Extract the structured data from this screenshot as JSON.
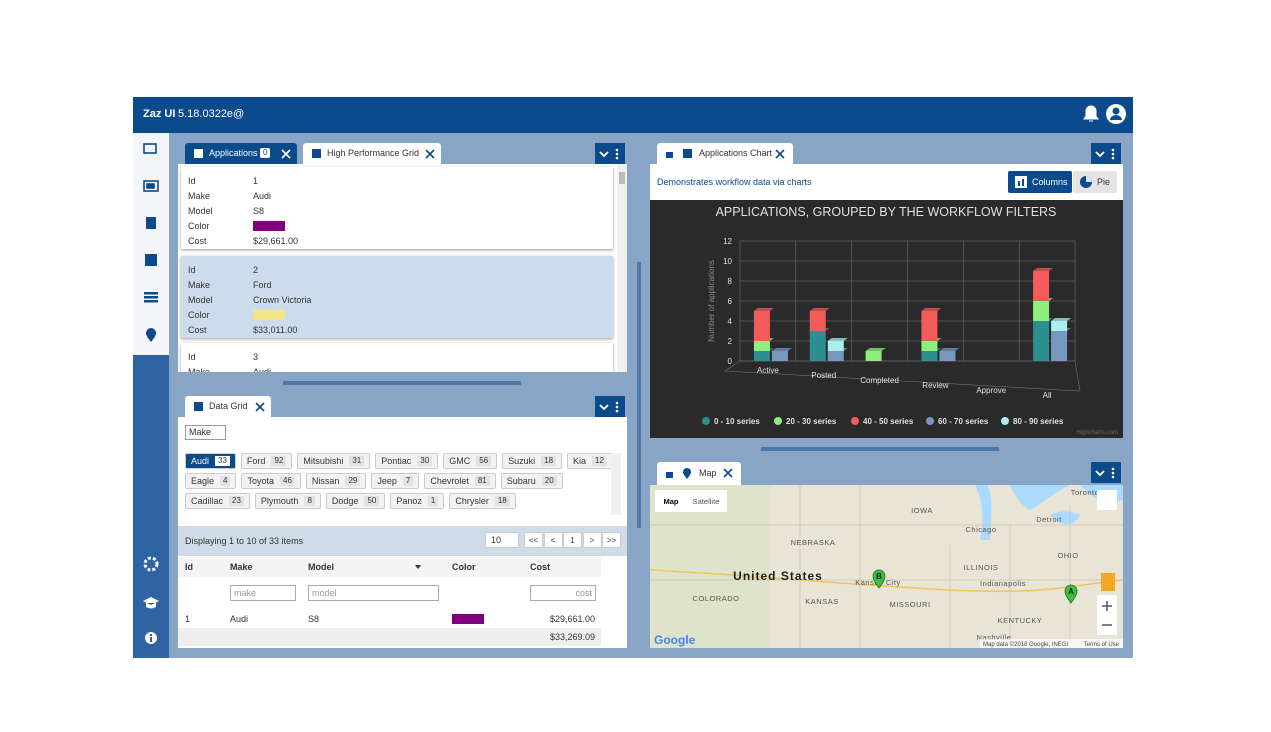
{
  "header": {
    "title": "Zaz UI",
    "version": "5.18.0322e@"
  },
  "records_panel": {
    "tabs": [
      {
        "label": "Applications",
        "badge": "0"
      },
      {
        "label": "High Performance Grid"
      }
    ],
    "fields": [
      "Id",
      "Make",
      "Model",
      "Color",
      "Cost"
    ],
    "records": [
      {
        "id": "1",
        "make": "Audi",
        "model": "S8",
        "color": "#800080",
        "cost": "$29,661.00"
      },
      {
        "id": "2",
        "make": "Ford",
        "model": "Crown Victoria",
        "color": "#f0e68c",
        "cost": "$33,011.00"
      },
      {
        "id": "3",
        "make": "Audi"
      }
    ]
  },
  "data_grid": {
    "tab": "Data Grid",
    "group_by": "Make",
    "makes": [
      {
        "name": "Audi",
        "count": "33"
      },
      {
        "name": "Ford",
        "count": "92"
      },
      {
        "name": "Mitsubishi",
        "count": "31"
      },
      {
        "name": "Pontiac",
        "count": "30"
      },
      {
        "name": "GMC",
        "count": "56"
      },
      {
        "name": "Suzuki",
        "count": "18"
      },
      {
        "name": "Kia",
        "count": "12"
      },
      {
        "name": "Eagle",
        "count": "4"
      },
      {
        "name": "Toyota",
        "count": "46"
      },
      {
        "name": "Nissan",
        "count": "29"
      },
      {
        "name": "Jeep",
        "count": "7"
      },
      {
        "name": "Chevrolet",
        "count": "81"
      },
      {
        "name": "Subaru",
        "count": "20"
      },
      {
        "name": "Cadillac",
        "count": "23"
      },
      {
        "name": "Plymouth",
        "count": "8"
      },
      {
        "name": "Dodge",
        "count": "50"
      },
      {
        "name": "Panoz",
        "count": "1"
      },
      {
        "name": "Chrysler",
        "count": "18"
      }
    ],
    "paging": {
      "info": "Displaying 1 to 10 of 33 items",
      "page_size": "10",
      "buttons": [
        "<<",
        "<",
        "1",
        ">",
        ">>"
      ]
    },
    "columns": [
      "Id",
      "Make",
      "Model",
      "Color",
      "Cost"
    ],
    "filters": {
      "make": "make",
      "model": "model",
      "cost": "cost"
    },
    "rows": [
      {
        "id": "1",
        "make": "Audi",
        "model": "S8",
        "color": "#800080",
        "cost": "$29,661.00"
      }
    ],
    "total": "$33,269.09"
  },
  "chart_panel": {
    "tab": "Applications Chart",
    "description": "Demonstrates workflow data via charts",
    "buttons": [
      "Columns",
      "Pie"
    ],
    "credit": "Highcharts.com"
  },
  "chart_data": {
    "type": "bar",
    "title": "APPLICATIONS, GROUPED BY THE WORKFLOW FILTERS",
    "y_label": "Number of applications",
    "categories": [
      "Active",
      "Posted",
      "Completed",
      "Review",
      "Approve",
      "All"
    ],
    "stacked": true,
    "series": [
      {
        "name": "0 - 10 series",
        "color": "#2b908f",
        "stack": "a",
        "values": [
          1,
          3,
          0,
          1,
          0,
          4
        ]
      },
      {
        "name": "20 - 30 series",
        "color": "#90ee7e",
        "stack": "a",
        "values": [
          1,
          0,
          1,
          1,
          0,
          2
        ]
      },
      {
        "name": "40 - 50 series",
        "color": "#f45b5b",
        "stack": "a",
        "values": [
          3,
          2,
          0,
          3,
          0,
          3
        ]
      },
      {
        "name": "60 - 70 series",
        "color": "#7798bf",
        "stack": "b",
        "values": [
          1,
          1,
          0,
          1,
          0,
          3
        ]
      },
      {
        "name": "80 - 90 series",
        "color": "#aaeeee",
        "stack": "b",
        "values": [
          0,
          1,
          0,
          0,
          0,
          1
        ]
      }
    ],
    "ylim": [
      0,
      12
    ],
    "yticks": [
      0,
      2,
      4,
      6,
      8,
      10,
      12
    ],
    "grid": true
  },
  "map_panel": {
    "tab": "Map",
    "buttons": [
      "Map",
      "Satellite"
    ],
    "labels": [
      {
        "text": "United States",
        "big": true,
        "x": 778,
        "y": 577
      },
      {
        "text": "NEBRASKA",
        "x": 813,
        "y": 542
      },
      {
        "text": "KANSAS",
        "x": 822,
        "y": 601
      },
      {
        "text": "COLORADO",
        "x": 716,
        "y": 598
      },
      {
        "text": "MISSOURI",
        "x": 910,
        "y": 604
      },
      {
        "text": "IOWA",
        "x": 922,
        "y": 510
      },
      {
        "text": "ILLINOIS",
        "x": 981,
        "y": 567
      },
      {
        "text": "OHIO",
        "x": 1068,
        "y": 555
      },
      {
        "text": "KENTUCKY",
        "x": 1020,
        "y": 620
      },
      {
        "text": "Kansas City",
        "x": 878,
        "y": 582
      },
      {
        "text": "Chicago",
        "x": 981,
        "y": 529
      },
      {
        "text": "Detroit",
        "x": 1049,
        "y": 519
      },
      {
        "text": "Toronto",
        "x": 1085,
        "y": 492
      },
      {
        "text": "Indianapolis",
        "x": 1003,
        "y": 583
      },
      {
        "text": "Nashville",
        "x": 994,
        "y": 637
      }
    ],
    "markers": [
      {
        "label": "B",
        "x": 879,
        "y": 578
      },
      {
        "label": "A",
        "x": 1071,
        "y": 593
      }
    ],
    "logo": "Google",
    "attribution": "Map data ©2018 Google, INEGI",
    "terms": "Terms of Use"
  }
}
